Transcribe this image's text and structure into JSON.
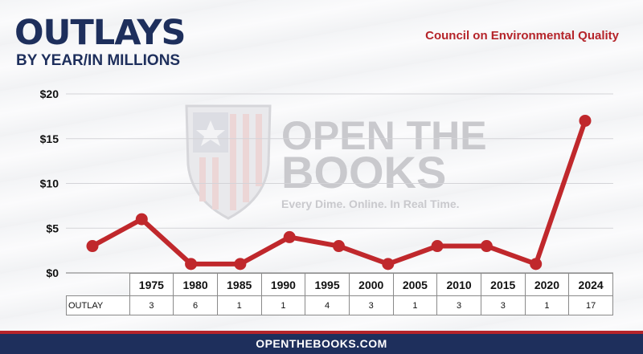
{
  "header": {
    "title": "OUTLAYS",
    "subtitle": "BY YEAR/IN MILLIONS",
    "agency": "Council on Environmental Quality"
  },
  "watermark": {
    "line1": "OPEN THE",
    "line2": "BOOKS",
    "tagline": "Every Dime. Online. In Real Time."
  },
  "chart_data": {
    "type": "line",
    "categories": [
      "1975",
      "1980",
      "1985",
      "1990",
      "1995",
      "2000",
      "2005",
      "2010",
      "2015",
      "2020",
      "2024"
    ],
    "series": [
      {
        "values": [
          3,
          6,
          1,
          1,
          4,
          3,
          1,
          3,
          3,
          1,
          17
        ]
      }
    ],
    "yticks": [
      "$0",
      "$5",
      "$10",
      "$15",
      "$20"
    ],
    "ylim": [
      0,
      20
    ],
    "grid": true,
    "line_color": "#c0282c",
    "row_label": "OUTLAY"
  },
  "footer": {
    "text": "OPENTHEBOOKS.COM"
  },
  "colors": {
    "navy": "#1e2f5c",
    "red": "#b5242a"
  }
}
